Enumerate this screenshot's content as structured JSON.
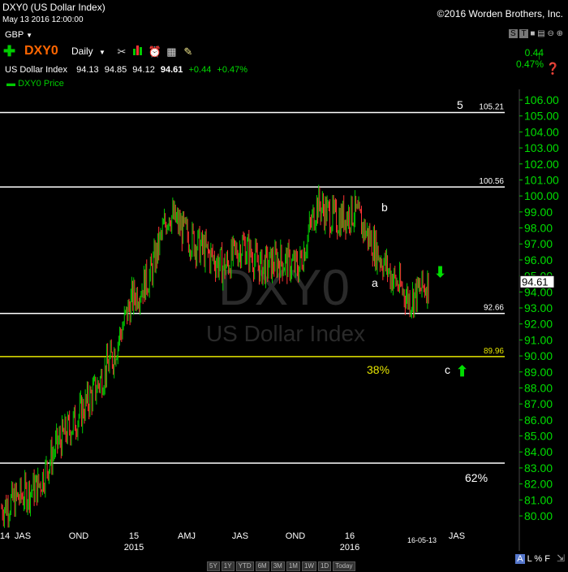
{
  "window": {
    "title": "DXY0 (US Dollar Index)",
    "timestamp": "May 13 2016 12:00:00",
    "copyright": "©2016 Worden Brothers, Inc."
  },
  "toolbar": {
    "currency": "GBP",
    "symbol": "DXY0",
    "interval": "Daily",
    "change_abs": "0.44",
    "change_pct": "0.47%",
    "quote": {
      "name": "US Dollar Index",
      "open": "94.13",
      "high": "94.85",
      "low": "94.12",
      "last": "94.61",
      "chg": "+0.44",
      "pct": "+0.47%"
    },
    "series_label": "DXY0 Price",
    "icons": [
      "wrench-icon",
      "bar-chart-icon",
      "alarm-clock-icon",
      "calculator-icon",
      "note-icon"
    ],
    "right_icons": [
      "S",
      "T"
    ]
  },
  "watermark": {
    "symbol": "DXY0",
    "name": "US Dollar Index"
  },
  "price_axis": {
    "ticks": [
      "106.00",
      "105.00",
      "104.00",
      "103.00",
      "102.00",
      "101.00",
      "100.00",
      "99.00",
      "98.00",
      "97.00",
      "96.00",
      "95.00",
      "94.00",
      "93.00",
      "92.00",
      "91.00",
      "90.00",
      "89.00",
      "88.00",
      "87.00",
      "86.00",
      "85.00",
      "84.00",
      "83.00",
      "82.00",
      "81.00",
      "80.00"
    ],
    "last_price_box": "94.61"
  },
  "lines": [
    {
      "value": 105.21,
      "label": "105.21",
      "color": "#ffffff"
    },
    {
      "value": 100.56,
      "label": "100.56",
      "color": "#ffffff"
    },
    {
      "value": 92.66,
      "label": "92.66",
      "color": "#ffffff"
    },
    {
      "value": 89.96,
      "label": "89.96",
      "color": "#e6e600"
    },
    {
      "value": 83.3,
      "label": "",
      "color": "#ffffff"
    }
  ],
  "annotations": {
    "wave5": "5",
    "wave_a": "a",
    "wave_b": "b",
    "wave_c": "c",
    "fib38": "38%",
    "fib62": "62%"
  },
  "time_axis": {
    "labels": [
      {
        "text": "14",
        "sub": ""
      },
      {
        "text": "JAS",
        "sub": ""
      },
      {
        "text": "OND",
        "sub": ""
      },
      {
        "text": "15",
        "sub": "2015"
      },
      {
        "text": "AMJ",
        "sub": ""
      },
      {
        "text": "JAS",
        "sub": ""
      },
      {
        "text": "OND",
        "sub": ""
      },
      {
        "text": "16",
        "sub": "2016"
      },
      {
        "text": "16-05-13",
        "sub": ""
      },
      {
        "text": "JAS",
        "sub": ""
      }
    ],
    "timeframes": [
      "5Y",
      "1Y",
      "YTD",
      "6M",
      "3M",
      "1M",
      "1W",
      "1D",
      "Today"
    ],
    "scale_options": [
      "A",
      "L",
      "%",
      "F"
    ]
  },
  "colors": {
    "up": "#00cc00",
    "down": "#ff3333",
    "fib": "#e6e600",
    "arrow": "#00dd00"
  },
  "chart_data": {
    "type": "bar",
    "title": "DXY0 (US Dollar Index)",
    "xlabel": "",
    "ylabel": "",
    "ylim": [
      79.5,
      106.5
    ],
    "x": [
      "2014-06",
      "2014-07",
      "2014-08",
      "2014-09",
      "2014-10",
      "2014-11",
      "2014-12",
      "2015-01",
      "2015-02",
      "2015-03",
      "2015-04",
      "2015-05",
      "2015-06",
      "2015-07",
      "2015-08",
      "2015-09",
      "2015-10",
      "2015-11",
      "2015-12",
      "2016-01",
      "2016-02",
      "2016-03",
      "2016-04",
      "2016-05"
    ],
    "series": [
      {
        "values": [
          80.5,
          81.2,
          81.9,
          84.5,
          86.0,
          87.8,
          90.0,
          93.5,
          95.0,
          99.0,
          97.5,
          96.5,
          95.5,
          97.0,
          95.5,
          96.0,
          95.5,
          99.5,
          98.5,
          99.0,
          97.0,
          95.0,
          93.5,
          94.6
        ]
      }
    ]
  }
}
